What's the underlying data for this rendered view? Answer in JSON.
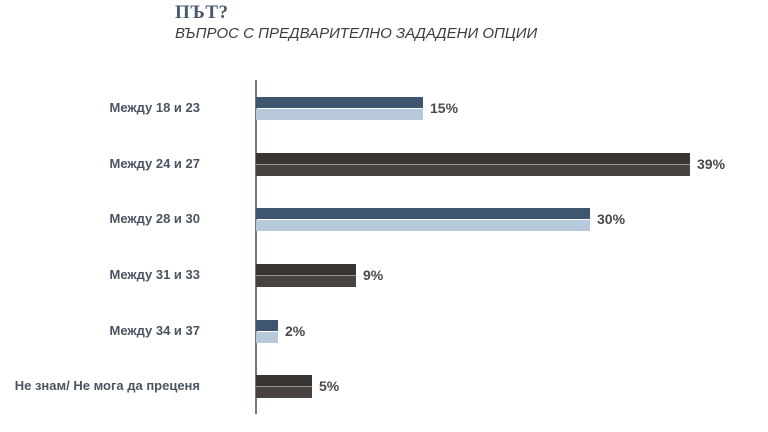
{
  "header": {
    "title": "ПЪТ?",
    "subtitle": "ВЪПРОС С ПРЕДВАРИТЕЛНО ЗАДАДЕНИ ОПЦИИ"
  },
  "colors": {
    "blue_top": "#3e5670",
    "blue_bottom": "#b8c9dc",
    "dark_top": "#393533",
    "dark_bottom": "#48433f",
    "separator": "#9a9590"
  },
  "chart_data": {
    "type": "bar",
    "orientation": "horizontal",
    "title": "ПЪТ?",
    "subtitle": "ВЪПРОС С ПРЕДВАРИТЕЛНО ЗАДАДЕНИ ОПЦИИ",
    "categories": [
      "Между 18 и 23",
      "Между 24 и 27",
      "Между 28 и 30",
      "Между 31 и 33",
      "Между 34 и 37",
      "Не знам/ Не мога да преценя"
    ],
    "values": [
      15,
      39,
      30,
      9,
      2,
      5
    ],
    "labels": [
      "15%",
      "39%",
      "30%",
      "9%",
      "2%",
      "5%"
    ],
    "styles": [
      "blue",
      "dark",
      "blue",
      "dark",
      "blue",
      "dark"
    ],
    "xlabel": "",
    "ylabel": "",
    "xlim": [
      0,
      40
    ],
    "grid": false,
    "legend": null
  }
}
